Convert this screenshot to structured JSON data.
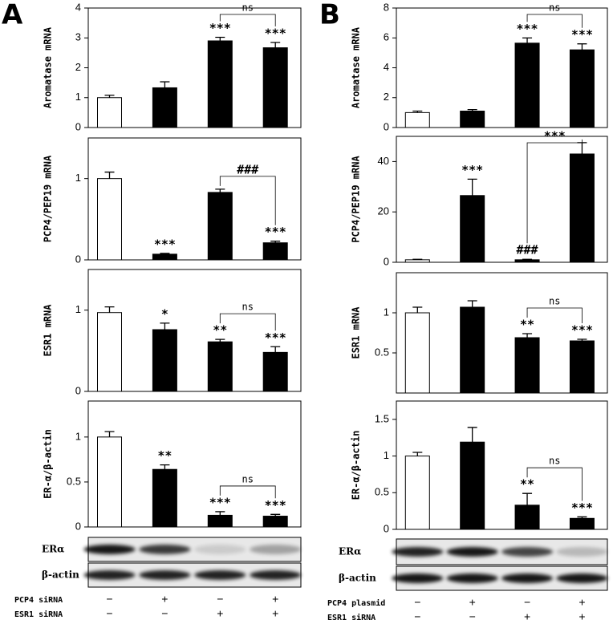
{
  "panel_labels": [
    "A",
    "B"
  ],
  "chart_data": [
    {
      "type": "bar",
      "ylabel": "Aromatase mRNA",
      "ylim": [
        0,
        4
      ],
      "yticks": [
        0,
        1,
        2,
        3,
        4
      ],
      "values": [
        1.0,
        1.33,
        2.9,
        2.67
      ],
      "errors": [
        0.08,
        0.2,
        0.12,
        0.18
      ],
      "colors": [
        "#ffffff",
        "#000000",
        "#000000",
        "#000000"
      ],
      "annotations": [
        null,
        null,
        "***",
        "***"
      ],
      "brackets": [
        {
          "between": [
            2,
            3
          ],
          "label": "ns"
        }
      ]
    },
    {
      "type": "bar",
      "ylabel": "PCP4/PEP19 mRNA",
      "ylim": [
        0,
        1.5
      ],
      "yticks": [
        0,
        1
      ],
      "values": [
        1.0,
        0.07,
        0.83,
        0.21
      ],
      "errors": [
        0.08,
        0.01,
        0.04,
        0.02
      ],
      "colors": [
        "#ffffff",
        "#000000",
        "#000000",
        "#000000"
      ],
      "annotations": [
        null,
        "***",
        null,
        "***"
      ],
      "brackets": [
        {
          "between": [
            2,
            3
          ],
          "label": "###"
        }
      ]
    },
    {
      "type": "bar",
      "ylabel": "ESR1 mRNA",
      "ylim": [
        0,
        1.5
      ],
      "yticks": [
        0,
        1
      ],
      "values": [
        0.97,
        0.76,
        0.61,
        0.48
      ],
      "errors": [
        0.07,
        0.08,
        0.03,
        0.07
      ],
      "colors": [
        "#ffffff",
        "#000000",
        "#000000",
        "#000000"
      ],
      "annotations": [
        null,
        "*",
        "**",
        "***"
      ],
      "brackets": [
        {
          "between": [
            2,
            3
          ],
          "label": "ns"
        }
      ]
    },
    {
      "type": "bar",
      "ylabel": "ER-α/β-actin",
      "ylim": [
        0,
        1.4
      ],
      "yticks": [
        0,
        0.5,
        1
      ],
      "values": [
        1.0,
        0.64,
        0.13,
        0.12
      ],
      "errors": [
        0.06,
        0.05,
        0.04,
        0.02
      ],
      "colors": [
        "#ffffff",
        "#000000",
        "#000000",
        "#000000"
      ],
      "annotations": [
        null,
        "**",
        "***",
        "***"
      ],
      "brackets": [
        {
          "between": [
            2,
            3
          ],
          "label": "ns"
        }
      ]
    },
    {
      "type": "bar",
      "ylabel": "Aromatase mRNA",
      "ylim": [
        0,
        8
      ],
      "yticks": [
        0,
        2,
        4,
        6,
        8
      ],
      "values": [
        1.0,
        1.1,
        5.65,
        5.2
      ],
      "errors": [
        0.1,
        0.1,
        0.35,
        0.4
      ],
      "colors": [
        "#ffffff",
        "#000000",
        "#000000",
        "#000000"
      ],
      "annotations": [
        null,
        null,
        "***",
        "***"
      ],
      "brackets": [
        {
          "between": [
            2,
            3
          ],
          "label": "ns"
        }
      ]
    },
    {
      "type": "bar",
      "ylabel": "PCP4/PEP19 mRNA",
      "ylim": [
        0,
        50
      ],
      "yticks": [
        0,
        20,
        40
      ],
      "values": [
        1.0,
        26.5,
        1.0,
        43
      ],
      "errors": [
        0.2,
        6.5,
        0.2,
        4.5
      ],
      "colors": [
        "#ffffff",
        "#000000",
        "#000000",
        "#000000"
      ],
      "annotations": [
        null,
        "***",
        "###",
        null
      ],
      "brackets": [
        {
          "between": [
            2,
            3
          ],
          "label": "***"
        }
      ]
    },
    {
      "type": "bar",
      "ylabel": "ESR1 mRNA",
      "ylim": [
        0,
        1.5
      ],
      "yticks": [
        0.5,
        1
      ],
      "values": [
        1.0,
        1.07,
        0.69,
        0.65
      ],
      "errors": [
        0.07,
        0.08,
        0.05,
        0.02
      ],
      "colors": [
        "#ffffff",
        "#000000",
        "#000000",
        "#000000"
      ],
      "annotations": [
        null,
        null,
        "**",
        "***"
      ],
      "brackets": [
        {
          "between": [
            2,
            3
          ],
          "label": "ns"
        }
      ]
    },
    {
      "type": "bar",
      "ylabel": "ER-α/β-actin",
      "ylim": [
        0,
        1.75
      ],
      "yticks": [
        0,
        0.5,
        1,
        1.5
      ],
      "values": [
        1.0,
        1.19,
        0.33,
        0.15
      ],
      "errors": [
        0.05,
        0.2,
        0.16,
        0.02
      ],
      "colors": [
        "#ffffff",
        "#000000",
        "#000000",
        "#000000"
      ],
      "annotations": [
        null,
        null,
        "**",
        "***"
      ],
      "brackets": [
        {
          "between": [
            2,
            3
          ],
          "label": "ns"
        }
      ]
    }
  ],
  "blots": [
    {
      "rows": [
        "ERα",
        "β-actin"
      ]
    },
    {
      "rows": [
        "ERα",
        "β-actin"
      ]
    }
  ],
  "conditions": [
    [
      {
        "name": "PCP4 siRNA",
        "signs": [
          "−",
          "+",
          "−",
          "+"
        ]
      },
      {
        "name": "ESR1 siRNA",
        "signs": [
          "−",
          "−",
          "+",
          "+"
        ]
      }
    ],
    [
      {
        "name": "PCP4 plasmid",
        "signs": [
          "−",
          "+",
          "−",
          "+"
        ]
      },
      {
        "name": "ESR1 siRNA",
        "signs": [
          "−",
          "−",
          "+",
          "+"
        ]
      }
    ]
  ]
}
